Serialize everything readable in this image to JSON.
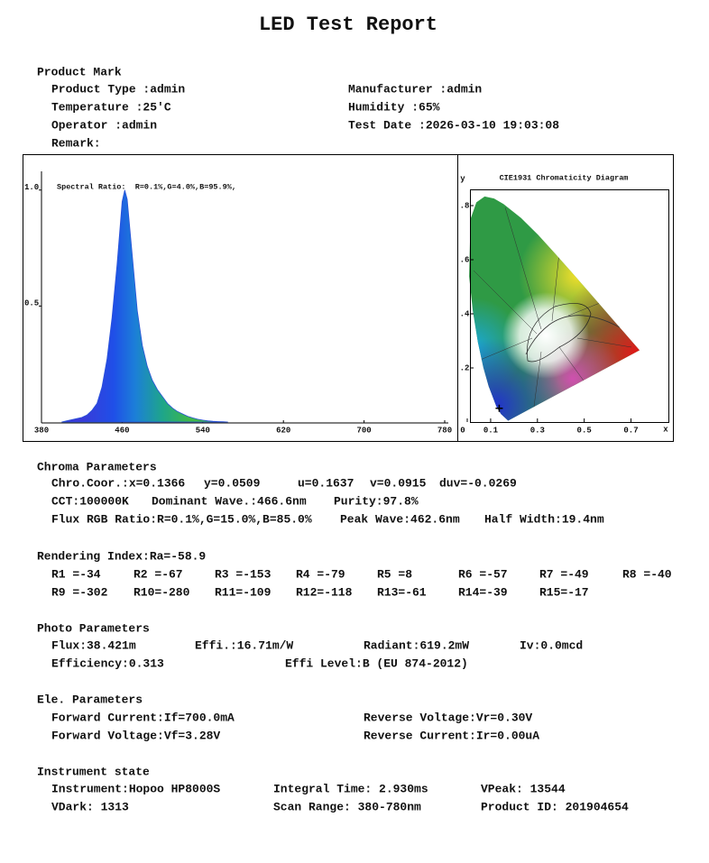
{
  "title": "LED Test Report",
  "product_mark": {
    "heading": "Product Mark",
    "fields": [
      "Product Type :admin",
      "Manufacturer :admin",
      "Temperature :25'C",
      "Humidity :65%",
      "Operator :admin",
      "Test Date :2026-03-10 19:03:08",
      "Remark:"
    ]
  },
  "chart_data": [
    {
      "type": "area",
      "annotation": "Spectral Ratio:  R=0.1%,G=4.0%,B=95.9%,",
      "x": [
        400,
        405,
        410,
        415,
        420,
        425,
        430,
        435,
        440,
        445,
        450,
        455,
        460,
        462.6,
        465,
        470,
        475,
        480,
        485,
        490,
        495,
        500,
        505,
        510,
        515,
        520,
        525,
        530,
        535,
        540,
        545,
        550,
        555,
        560,
        565
      ],
      "values": [
        0,
        0.005,
        0.01,
        0.015,
        0.02,
        0.03,
        0.05,
        0.08,
        0.15,
        0.27,
        0.45,
        0.68,
        0.95,
        1,
        0.96,
        0.72,
        0.48,
        0.33,
        0.24,
        0.18,
        0.14,
        0.11,
        0.08,
        0.06,
        0.045,
        0.035,
        0.025,
        0.018,
        0.012,
        0.008,
        0.005,
        0.003,
        0.002,
        0.001,
        0
      ],
      "xlim": [
        380,
        780
      ],
      "ylim": [
        0,
        1.1
      ],
      "xticks": [
        380,
        460,
        540,
        620,
        700,
        780
      ],
      "yticks": [
        0.5,
        {
          "value": 1,
          "label": "1.0"
        }
      ]
    },
    {
      "type": "scatter",
      "title": "CIE1931 Chromaticity Diagram",
      "x_label": "x",
      "y_label": "y",
      "x": [
        0.1366
      ],
      "values": [
        0.0509
      ],
      "xlim": [
        0,
        0.86
      ],
      "ylim": [
        0,
        0.86
      ],
      "xticks": [
        0,
        0.1,
        0.3,
        0.5,
        0.7
      ],
      "yticks": [
        {
          "value": 0.2,
          "label": ".2"
        },
        {
          "value": 0.4,
          "label": ".4"
        },
        {
          "value": 0.6,
          "label": ".6"
        },
        {
          "value": 0.8,
          "label": ".8"
        }
      ]
    }
  ],
  "chroma": {
    "heading": "Chroma Parameters",
    "items": [
      "Chro.Coor.:x=0.1366",
      "y=0.0509",
      "u=0.1637",
      "v=0.0915",
      "duv=-0.0269",
      "CCT:100000K",
      "Dominant Wave.:466.6nm",
      "Purity:97.8%",
      "Flux RGB Ratio:R=0.1%,G=15.0%,B=85.0%",
      "Peak Wave:462.6nm",
      "Half Width:19.4nm"
    ]
  },
  "rendering": {
    "heading": "Rendering Index:Ra=-58.9",
    "items": [
      "R1 =-34",
      "R2 =-67",
      "R3 =-153",
      "R4 =-79",
      "R5 =8",
      "R6 =-57",
      "R7 =-49",
      "R8 =-40",
      "R9 =-302",
      "R10=-280",
      "R11=-109",
      "R12=-118",
      "R13=-61",
      "R14=-39",
      "R15=-17"
    ]
  },
  "photo": {
    "heading": "Photo Parameters",
    "items": [
      "Flux:38.421m",
      "Effi.:16.71m/W",
      "Radiant:619.2mW",
      "Iv:0.0mcd",
      "Efficiency:0.313",
      "Effi Level:B (EU 874-2012)"
    ]
  },
  "electrical": {
    "heading": "Ele. Parameters",
    "items": [
      "Forward Current:If=700.0mA",
      "Reverse Voltage:Vr=0.30V",
      "Forward Voltage:Vf=3.28V",
      "Reverse Current:Ir=0.00uA"
    ]
  },
  "instrument": {
    "heading": "Instrument state",
    "items": [
      "Instrument:Hopoo HP8000S",
      "Integral Time: 2.930ms",
      "VPeak: 13544",
      "VDark: 1313",
      "Scan Range: 380-780nm",
      "Product ID: 201904654"
    ]
  }
}
